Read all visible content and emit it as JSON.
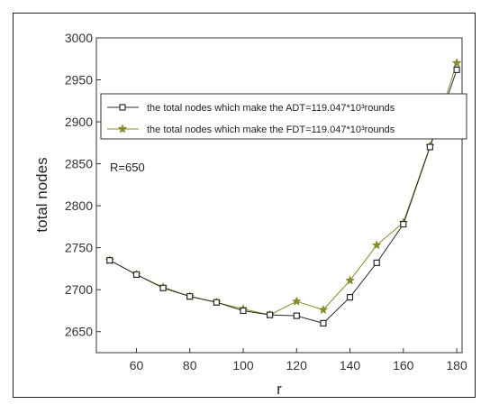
{
  "chart_data": {
    "type": "line",
    "title": "",
    "xlabel": "r",
    "ylabel": "total nodes",
    "annotation": "R=650",
    "xlim": [
      45,
      182
    ],
    "ylim": [
      2625,
      3000
    ],
    "x_ticks": [
      "60",
      "80",
      "100",
      "120",
      "140",
      "160",
      "180"
    ],
    "y_ticks": [
      "2650",
      "2700",
      "2750",
      "2800",
      "2850",
      "2900",
      "2950",
      "3000"
    ],
    "grid": false,
    "legend_position": "top",
    "x": [
      50,
      60,
      70,
      80,
      90,
      100,
      110,
      120,
      130,
      140,
      150,
      160,
      170,
      180
    ],
    "series": [
      {
        "name": "the total nodes which make the ADT=119.047*10³rounds",
        "marker": "open-square",
        "color": "#2b2b2b",
        "values": [
          2735,
          2718,
          2702,
          2692,
          2685,
          2675,
          2670,
          2669,
          2660,
          2691,
          2732,
          2778,
          2870,
          2962
        ]
      },
      {
        "name": "the total nodes which make the FDT=119.047*10³rounds",
        "marker": "star",
        "color": "#8a8a2a",
        "values": [
          2735,
          2718,
          2703,
          2692,
          2685,
          2677,
          2670,
          2686,
          2676,
          2711,
          2753,
          2780,
          2871,
          2970
        ]
      }
    ]
  }
}
